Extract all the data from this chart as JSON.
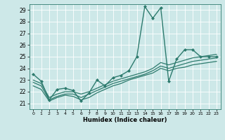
{
  "title": "",
  "xlabel": "Humidex (Indice chaleur)",
  "bg_color": "#cde8e8",
  "line_color": "#2e7b6e",
  "grid_color": "#ffffff",
  "xlim": [
    -0.5,
    23.5
  ],
  "ylim": [
    20.5,
    29.5
  ],
  "yticks": [
    21,
    22,
    23,
    24,
    25,
    26,
    27,
    28,
    29
  ],
  "xticks": [
    0,
    1,
    2,
    3,
    4,
    5,
    6,
    7,
    8,
    9,
    10,
    11,
    12,
    13,
    14,
    15,
    16,
    17,
    18,
    19,
    20,
    21,
    22,
    23
  ],
  "lines": [
    {
      "x": [
        0,
        1,
        2,
        3,
        4,
        5,
        6,
        7,
        8,
        9,
        10,
        11,
        12,
        13,
        14,
        15,
        16,
        17,
        18,
        19,
        20,
        21,
        22,
        23
      ],
      "y": [
        23.5,
        22.9,
        21.3,
        22.2,
        22.3,
        22.1,
        21.2,
        21.9,
        23.0,
        22.5,
        23.2,
        23.4,
        23.8,
        25.0,
        29.3,
        28.3,
        29.2,
        22.9,
        24.8,
        25.6,
        25.6,
        25.0,
        25.0,
        25.0
      ],
      "marker": "D",
      "markersize": 2.0,
      "linewidth": 1.0
    },
    {
      "x": [
        0,
        1,
        2,
        3,
        4,
        5,
        6,
        7,
        8,
        9,
        10,
        11,
        12,
        13,
        14,
        15,
        16,
        17,
        18,
        19,
        20,
        21,
        22,
        23
      ],
      "y": [
        23.0,
        22.7,
        21.5,
        21.8,
        22.0,
        22.0,
        21.8,
        22.0,
        22.3,
        22.6,
        22.9,
        23.1,
        23.3,
        23.5,
        23.7,
        24.0,
        24.5,
        24.3,
        24.5,
        24.7,
        24.9,
        25.0,
        25.1,
        25.2
      ],
      "marker": null,
      "markersize": 0,
      "linewidth": 0.9
    },
    {
      "x": [
        0,
        1,
        2,
        3,
        4,
        5,
        6,
        7,
        8,
        9,
        10,
        11,
        12,
        13,
        14,
        15,
        16,
        17,
        18,
        19,
        20,
        21,
        22,
        23
      ],
      "y": [
        22.8,
        22.5,
        21.3,
        21.6,
        21.8,
        21.8,
        21.5,
        21.8,
        22.1,
        22.4,
        22.7,
        22.9,
        23.1,
        23.3,
        23.5,
        23.8,
        24.2,
        24.0,
        24.2,
        24.4,
        24.6,
        24.7,
        24.8,
        24.9
      ],
      "marker": null,
      "markersize": 0,
      "linewidth": 0.9
    },
    {
      "x": [
        0,
        1,
        2,
        3,
        4,
        5,
        6,
        7,
        8,
        9,
        10,
        11,
        12,
        13,
        14,
        15,
        16,
        17,
        18,
        19,
        20,
        21,
        22,
        23
      ],
      "y": [
        22.5,
        22.2,
        21.2,
        21.5,
        21.7,
        21.6,
        21.3,
        21.5,
        21.9,
        22.2,
        22.5,
        22.7,
        23.0,
        23.2,
        23.4,
        23.6,
        24.0,
        23.8,
        24.0,
        24.1,
        24.3,
        24.4,
        24.5,
        24.6
      ],
      "marker": null,
      "markersize": 0,
      "linewidth": 0.9
    }
  ]
}
